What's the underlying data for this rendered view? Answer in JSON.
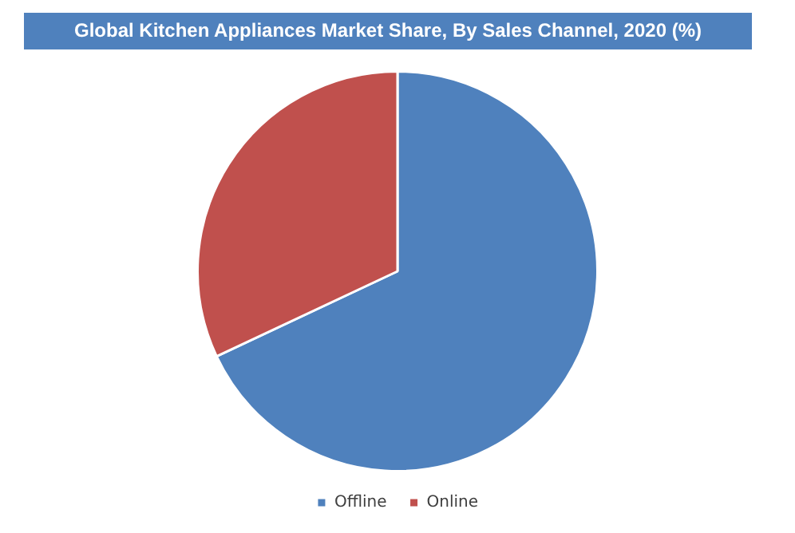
{
  "chart_data": {
    "type": "pie",
    "title": "Global Kitchen Appliances Market Share, By Sales Channel, 2020 (%)",
    "categories": [
      "Offline",
      "Online"
    ],
    "values": [
      68,
      32
    ],
    "colors": [
      "#4f81bd",
      "#c0504d"
    ],
    "legend": "bottom"
  }
}
